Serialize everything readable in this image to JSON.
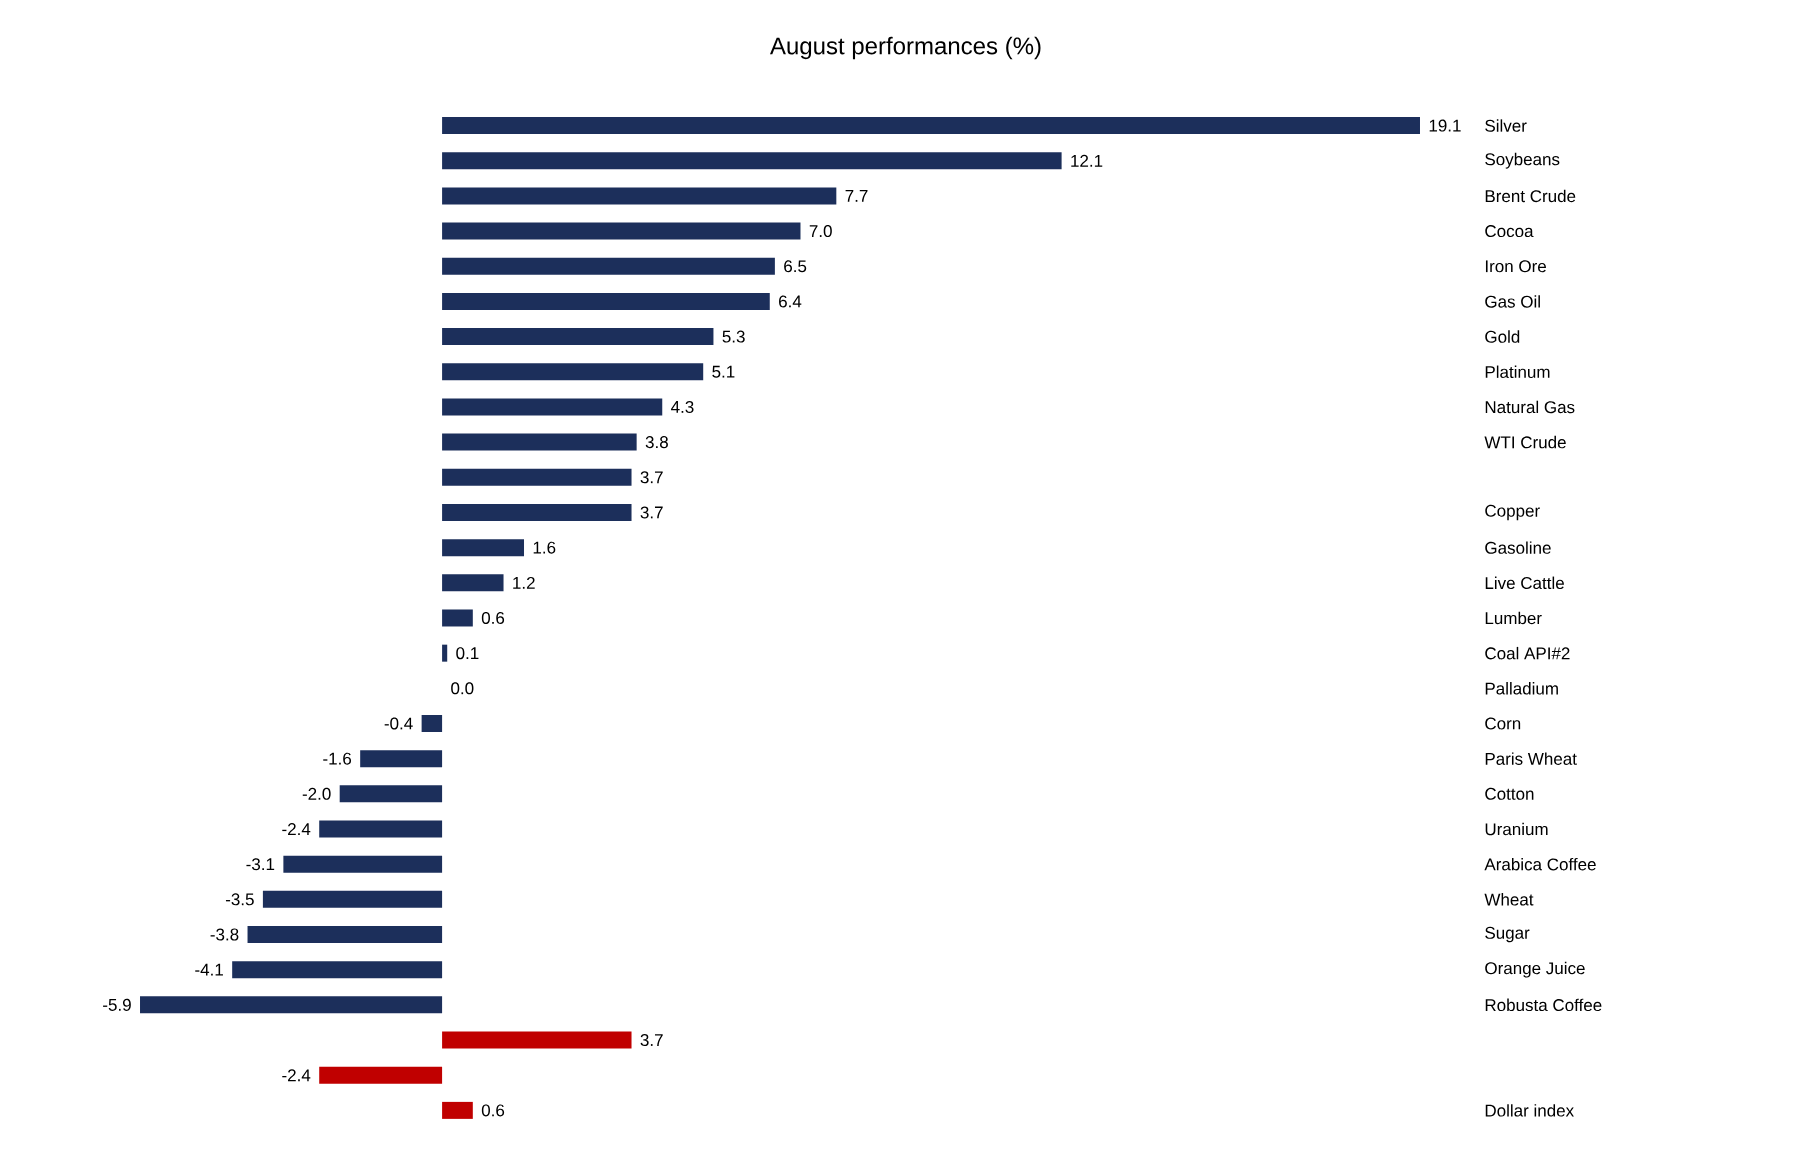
{
  "chart_data": {
    "type": "bar",
    "orientation": "horizontal",
    "title": "August performances (%)",
    "categories": [
      "Silver",
      "Soybeans",
      "Brent Crude",
      "Cocoa",
      "Iron Ore",
      "Gas Oil",
      "Gold",
      "Platinum",
      "Natural Gas",
      "WTI Crude",
      null,
      "Copper",
      "Gasoline",
      "Live Cattle",
      "Lumber",
      "Coal API#2",
      "Palladium",
      "Corn",
      "Paris Wheat",
      "Cotton",
      "Uranium",
      "Arabica Coffee",
      "Wheat",
      "Sugar",
      "Orange Juice",
      "Robusta Coffee",
      null,
      null,
      "Dollar index"
    ],
    "values": [
      19.1,
      12.1,
      7.7,
      7.0,
      6.5,
      6.4,
      5.3,
      5.1,
      4.3,
      3.8,
      3.7,
      3.7,
      1.6,
      1.2,
      0.6,
      0.1,
      0.0,
      -0.4,
      -1.6,
      -2.0,
      -2.4,
      -3.1,
      -3.5,
      -3.8,
      -4.1,
      -5.9,
      3.7,
      -2.4,
      0.6
    ],
    "value_labels": [
      "19.1",
      "12.1",
      "7.7",
      "7.0",
      "6.5",
      "6.4",
      "5.3",
      "5.1",
      "4.3",
      "3.8",
      "3.7",
      "3.7",
      "1.6",
      "1.2",
      "0.6",
      "0.1",
      "0.0",
      "-0.4",
      "-1.6",
      "-2.0",
      "-2.4",
      "-3.1",
      "-3.5",
      "-3.8",
      "-4.1",
      "-5.9",
      "3.7",
      "-2.4",
      "0.6"
    ],
    "colors": [
      "#1c2f5b",
      "#1c2f5b",
      "#1c2f5b",
      "#1c2f5b",
      "#1c2f5b",
      "#1c2f5b",
      "#1c2f5b",
      "#1c2f5b",
      "#1c2f5b",
      "#1c2f5b",
      "#1c2f5b",
      "#1c2f5b",
      "#1c2f5b",
      "#1c2f5b",
      "#1c2f5b",
      "#1c2f5b",
      "#1c2f5b",
      "#1c2f5b",
      "#1c2f5b",
      "#1c2f5b",
      "#1c2f5b",
      "#1c2f5b",
      "#1c2f5b",
      "#1c2f5b",
      "#1c2f5b",
      "#1c2f5b",
      "#c00000",
      "#c00000",
      "#c00000"
    ]
  }
}
